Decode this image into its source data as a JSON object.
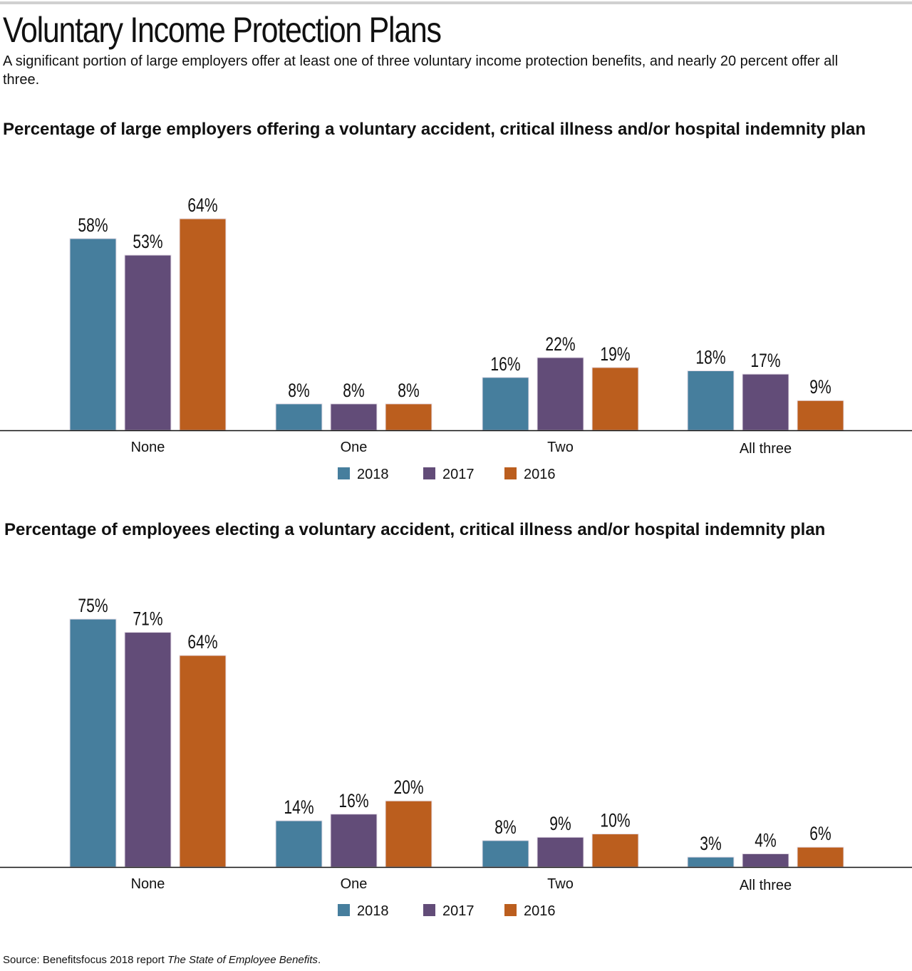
{
  "page": {
    "title": "Voluntary Income Protection Plans",
    "subtitle": "A significant portion of large employers offer at least one of three voluntary income protection benefits, and nearly 20 percent offer all three.",
    "source_prefix": "Source: Benefitsfocus 2018 report ",
    "source_italic": "The State of Employee Benefits",
    "source_suffix": "."
  },
  "colors": {
    "2018": "#467e9d",
    "2017": "#624c78",
    "2016": "#bb5e1e"
  },
  "chart_data": [
    {
      "type": "bar",
      "title": "Percentage of large employers offering a voluntary accident, critical illness and/or hospital indemnity plan",
      "xlabel": "",
      "ylabel": "",
      "ylim": [
        0,
        70
      ],
      "categories": [
        "None",
        "One",
        "Two",
        "All three"
      ],
      "series": [
        {
          "name": "2018",
          "values": [
            58,
            8,
            16,
            18
          ],
          "labels": [
            "58%",
            "8%",
            "16%",
            "18%"
          ]
        },
        {
          "name": "2017",
          "values": [
            53,
            8,
            22,
            17
          ],
          "labels": [
            "53%",
            "8%",
            "22%",
            "17%"
          ]
        },
        {
          "name": "2016",
          "values": [
            64,
            8,
            19,
            9
          ],
          "labels": [
            "64%",
            "8%",
            "19%",
            "9%"
          ]
        }
      ],
      "legend": "bottom-center",
      "grid": false
    },
    {
      "type": "bar",
      "title": "Percentage of employees electing a voluntary accident, critical illness and/or hospital indemnity plan",
      "xlabel": "",
      "ylabel": "",
      "ylim": [
        0,
        80
      ],
      "categories": [
        "None",
        "One",
        "Two",
        "All three"
      ],
      "series": [
        {
          "name": "2018",
          "values": [
            75,
            14,
            8,
            3
          ],
          "labels": [
            "75%",
            "14%",
            "8%",
            "3%"
          ]
        },
        {
          "name": "2017",
          "values": [
            71,
            16,
            9,
            4
          ],
          "labels": [
            "71%",
            "16%",
            "9%",
            "4%"
          ]
        },
        {
          "name": "2016",
          "values": [
            64,
            20,
            10,
            6
          ],
          "labels": [
            "64%",
            "20%",
            "10%",
            "6%"
          ]
        }
      ],
      "legend": "bottom-center",
      "grid": false
    }
  ]
}
